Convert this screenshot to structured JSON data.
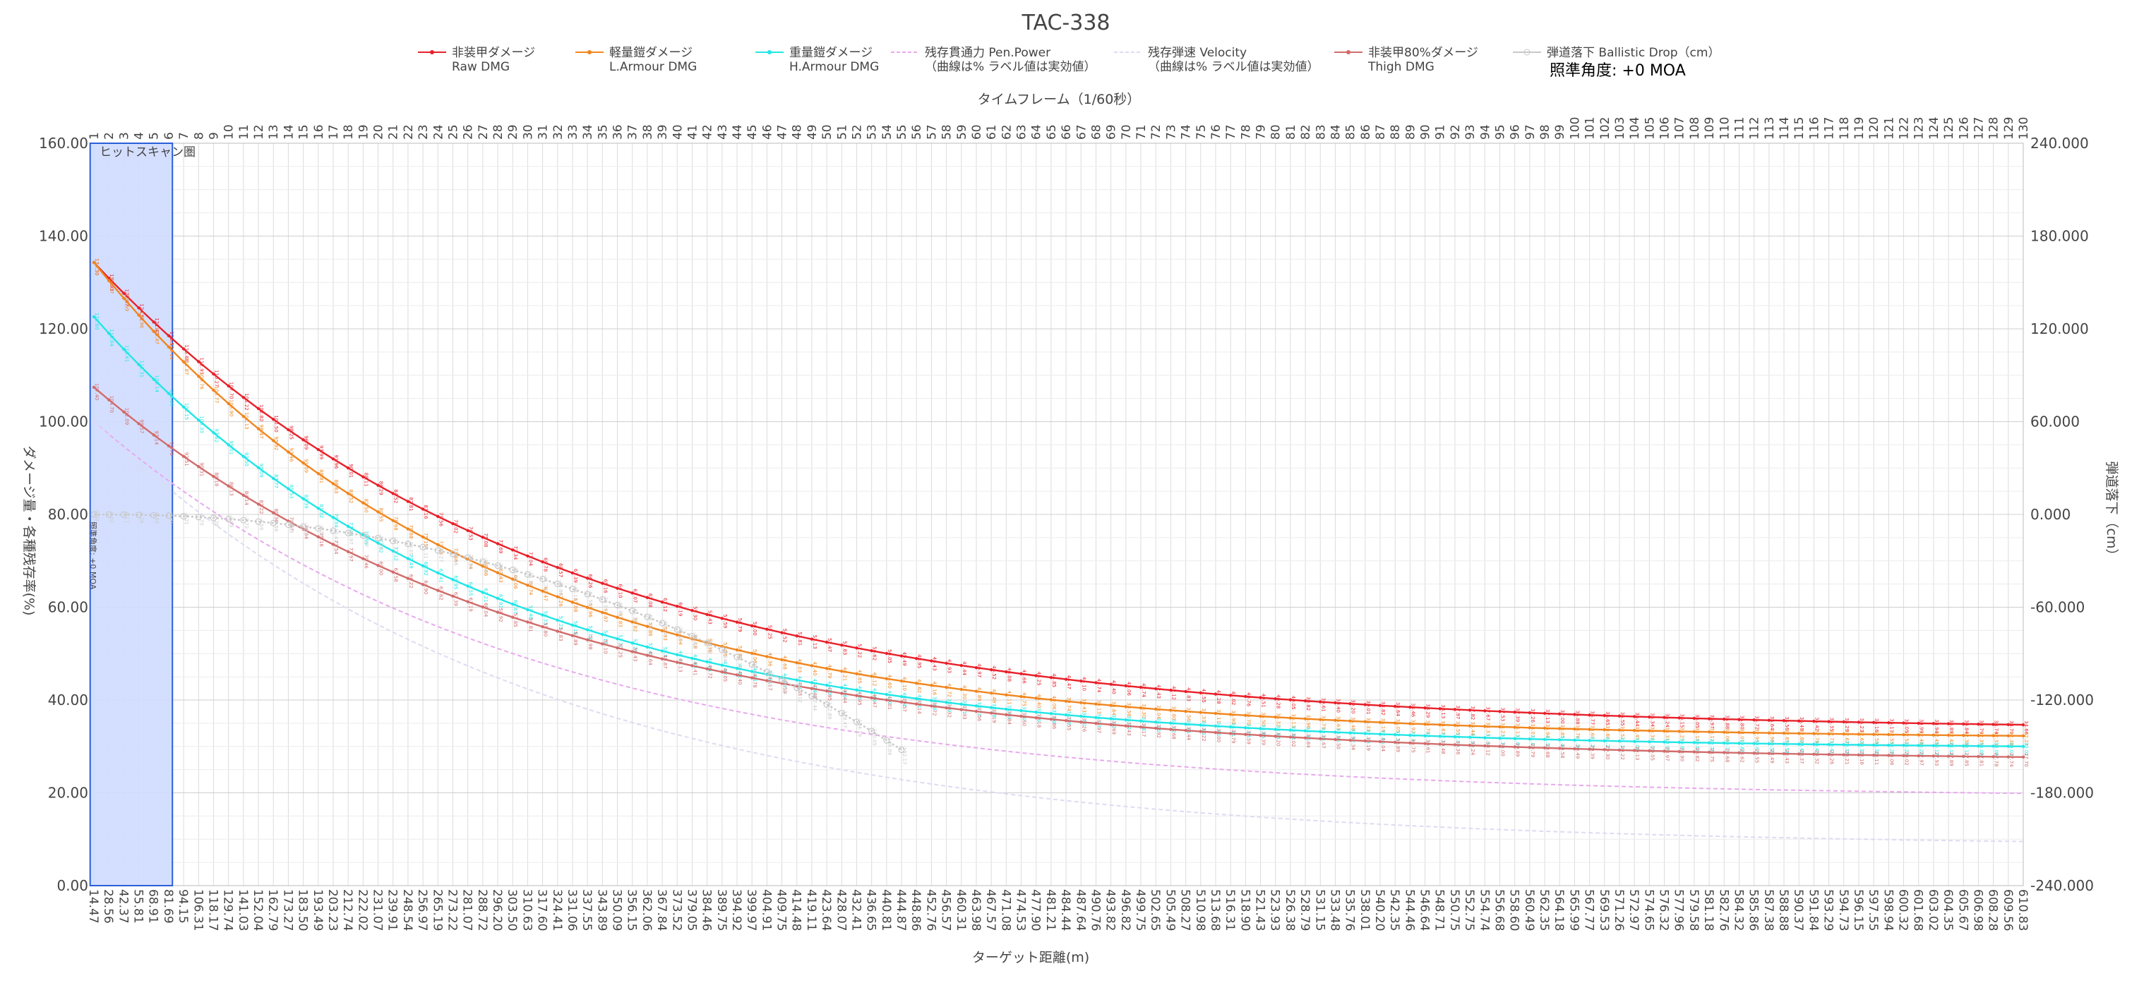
{
  "chart_data": {
    "type": "line",
    "title": "TAC-338",
    "aim_label": "照準角度: +0 MOA",
    "aim_side_label": "照準角度: +0 MOA",
    "hitscan_label": "ヒットスキャン圏",
    "x_top_label": "タイムフレーム（1/60秒）",
    "xlabel": "ターゲット距離(m)",
    "ylabel": "ダメージ量・各種残存率(%)",
    "y2label": "弾道落下（cm）",
    "ylim": [
      0,
      160
    ],
    "y2lim": [
      -240,
      240
    ],
    "y_ticks": [
      "0.00",
      "20.00",
      "40.00",
      "60.00",
      "80.00",
      "100.00",
      "120.00",
      "140.00",
      "160.00"
    ],
    "y2_ticks": [
      "-240.000",
      "-180.000",
      "-120.000",
      "-60.000",
      "0.000",
      "60.000",
      "120.000",
      "180.000",
      "240.000"
    ],
    "frames": [
      1,
      2,
      3,
      4,
      5,
      6,
      7,
      8,
      9,
      10,
      11,
      12,
      13,
      14,
      15,
      16,
      17,
      18,
      19,
      20,
      21,
      22,
      23,
      24,
      25,
      26,
      27,
      28,
      29,
      30,
      31,
      32,
      33,
      34,
      35,
      36,
      37,
      38,
      39,
      40,
      41,
      42,
      43,
      44,
      45,
      46,
      47,
      48,
      49,
      50,
      51,
      52,
      53,
      54,
      55,
      56,
      57,
      58,
      59,
      60,
      61,
      62,
      63,
      64,
      65,
      66,
      67,
      68,
      69,
      70,
      71,
      72,
      73,
      74,
      75,
      76,
      77,
      78,
      79,
      80,
      81,
      82,
      83,
      84,
      85,
      86,
      87,
      88,
      89,
      90,
      91,
      92,
      93,
      94,
      95,
      96,
      97,
      98,
      99,
      100,
      101,
      102,
      103,
      104,
      105,
      106,
      107,
      108,
      109,
      110,
      111,
      112,
      113,
      114,
      115,
      116,
      117,
      118,
      119,
      120,
      121,
      122,
      123,
      124,
      125,
      126,
      127,
      128,
      129,
      130
    ],
    "distances": [
      "14.47",
      "28.56",
      "42.37",
      "55.81",
      "68.91",
      "81.69",
      "94.15",
      "106.31",
      "118.17",
      "129.74",
      "141.03",
      "152.04",
      "162.79",
      "173.27",
      "183.50",
      "193.49",
      "203.23",
      "212.74",
      "222.02",
      "231.07",
      "239.91",
      "248.54",
      "256.97",
      "265.19",
      "273.22",
      "281.07",
      "288.72",
      "296.20",
      "303.50",
      "310.63",
      "317.60",
      "324.41",
      "331.06",
      "337.55",
      "343.89",
      "350.09",
      "356.15",
      "362.06",
      "367.84",
      "373.52",
      "379.05",
      "384.46",
      "389.75",
      "394.92",
      "399.97",
      "404.91",
      "409.75",
      "414.48",
      "419.11",
      "423.64",
      "428.07",
      "432.41",
      "436.65",
      "440.81",
      "444.87",
      "448.86",
      "452.76",
      "456.57",
      "460.31",
      "463.98",
      "467.57",
      "471.08",
      "474.53",
      "477.90",
      "481.21",
      "484.44",
      "487.64",
      "490.76",
      "493.82",
      "496.82",
      "499.75",
      "502.65",
      "505.49",
      "508.27",
      "510.98",
      "513.68",
      "516.31",
      "518.90",
      "521.43",
      "523.93",
      "526.38",
      "528.79",
      "531.15",
      "533.48",
      "535.76",
      "538.01",
      "540.20",
      "542.35",
      "544.46",
      "546.64",
      "548.71",
      "550.75",
      "552.75",
      "554.74",
      "556.68",
      "558.60",
      "560.49",
      "562.35",
      "564.18",
      "565.99",
      "567.77",
      "569.53",
      "571.26",
      "572.97",
      "574.65",
      "576.32",
      "577.96",
      "579.58",
      "581.18",
      "582.76",
      "584.32",
      "585.86",
      "587.38",
      "588.88",
      "590.37",
      "591.84",
      "593.29",
      "594.73",
      "596.15",
      "597.55",
      "598.94",
      "600.32",
      "601.68",
      "603.02",
      "604.35",
      "605.67",
      "606.98",
      "608.28",
      "609.56",
      "610.83"
    ],
    "series": [
      {
        "name": "非装甲ダメージ Raw DMG",
        "legend_l1": "非装甲ダメージ",
        "legend_l2": "Raw DMG",
        "color": "#e8202a",
        "axis": "left",
        "start": 134.3,
        "end": 33.4,
        "k": 0.017,
        "marker": "dot",
        "start_frame": 1
      },
      {
        "name": "軽量鎧ダメージ L.Armour DMG",
        "legend_l1": "軽量鎧ダメージ",
        "legend_l2": "L.Armour DMG",
        "color": "#f0861e",
        "axis": "left",
        "start": 134.3,
        "end": 31.6,
        "k": 0.0195,
        "marker": "dot",
        "start_frame": 1
      },
      {
        "name": "重量鎧ダメージ H.Armour DMG",
        "legend_l1": "重量鎧ダメージ",
        "legend_l2": "H.Armour DMG",
        "color": "#22e6e6",
        "axis": "left",
        "start": 122.6,
        "end": 29.4,
        "k": 0.0195,
        "marker": "dot",
        "start_frame": 1
      },
      {
        "name": "残存貫通力 Pen.Power（曲線は% ラベル値は実効値）",
        "legend_l1": "残存貫通力 Pen.Power",
        "legend_l2": "（曲線は% ラベル値は実効値）",
        "color": "#e9a8ee",
        "axis": "left",
        "start": 100,
        "end": 18.9,
        "k": 0.0171,
        "marker": "none",
        "start_frame": 1
      },
      {
        "name": "残存弾速 Velocity（曲線は% ラベル値は実効値）",
        "legend_l1": "残存弾速 Velocity",
        "legend_l2": "（曲線は% ラベル値は実効値）",
        "color": "#dcdcf2",
        "axis": "left",
        "start": 100,
        "end": 8.4,
        "k": 0.0171,
        "marker": "none",
        "start_frame": 1
      },
      {
        "name": "非装甲80%ダメージ Thigh DMG",
        "legend_l1": "非装甲80%ダメージ",
        "legend_l2": "Thigh DMG",
        "color": "#d26b6b",
        "axis": "left",
        "start": 107.4,
        "end": 26.7,
        "k": 0.017,
        "marker": "dot",
        "start_frame": 1
      },
      {
        "name": "弾道落下 Ballistic Drop (cm)",
        "legend_l1": "弾道落下 Ballistic Drop（cm）",
        "legend_l2": "",
        "color": "#c8c8c8",
        "axis": "right",
        "marker": "circle",
        "drop_a": 0.0235,
        "drop_p": 2.2,
        "start_frame": 1,
        "end_frame": 55
      }
    ],
    "grid": true,
    "legend": "top"
  },
  "colors": {
    "hitscan_fill": "#cfdcff",
    "hitscan_border": "#2a5fd8",
    "grid": "#dcdcdc"
  }
}
